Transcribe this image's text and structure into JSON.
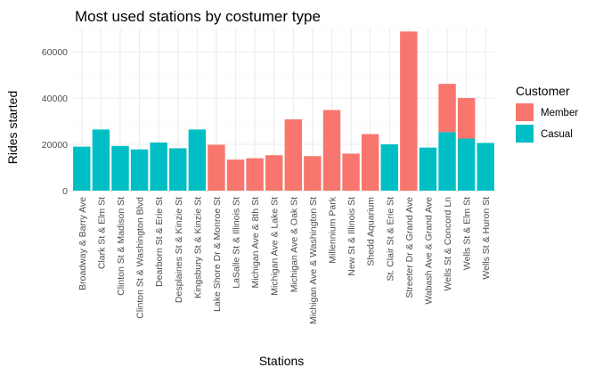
{
  "chart_data": {
    "type": "bar",
    "stacked": true,
    "title": "Most used stations by costumer type",
    "xlabel": "Stations",
    "ylabel": "Rides started",
    "ylim": [
      0,
      70000
    ],
    "yticks": [
      0,
      20000,
      40000,
      60000
    ],
    "ytick_labels": [
      "0",
      "20000",
      "40000",
      "60000"
    ],
    "grid": true,
    "legend": {
      "title": "Customer",
      "placement": "right"
    },
    "categories": [
      "Broadway & Barry Ave",
      "Clark St & Elm St",
      "Clinton St & Madison St",
      "Clinton St & Washington Blvd",
      "Dearborn St & Erie St",
      "Desplaines St & Kinzie St",
      "Kingsbury St & Kinzie St",
      "Lake Shore Dr & Monroe St",
      "LaSalle St & Illinois St",
      "Michigan Ave & 8th St",
      "Michigan Ave & Lake St",
      "Michigan Ave & Oak St",
      "Michigan Ave & Washington St",
      "Millennium Park",
      "New St & Illinois St",
      "Shedd Aquarium",
      "St. Clair St & Erie St",
      "Streeter Dr & Grand Ave",
      "Wabash Ave & Grand Ave",
      "Wells St & Concord Ln",
      "Wells St & Elm St",
      "Wells St & Huron St"
    ],
    "series": [
      {
        "name": "Member",
        "color": "#F8766D",
        "values": [
          0,
          0,
          0,
          0,
          0,
          0,
          0,
          19800,
          13400,
          14000,
          15300,
          30800,
          14900,
          34800,
          16000,
          24400,
          0,
          68700,
          0,
          20800,
          17500,
          0
        ]
      },
      {
        "name": "Casual",
        "color": "#00BFC4",
        "values": [
          19000,
          26400,
          19300,
          17800,
          20800,
          18300,
          26400,
          0,
          0,
          0,
          0,
          0,
          0,
          0,
          0,
          0,
          20000,
          0,
          18600,
          25300,
          22500,
          20600
        ]
      }
    ]
  }
}
